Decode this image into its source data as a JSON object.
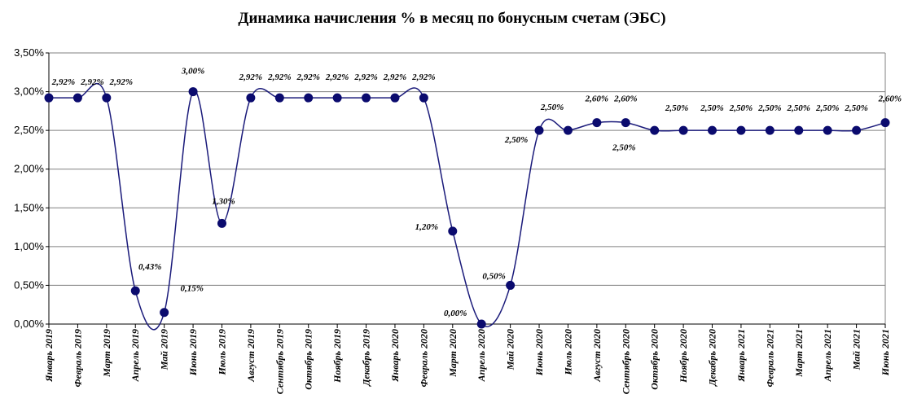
{
  "chart_data": {
    "type": "line",
    "title": "Динамика начисления % в месяц по бонусным счетам (ЭБС)",
    "xlabel": "",
    "ylabel": "",
    "ylim": [
      0,
      3.5
    ],
    "yticks": [
      0,
      0.5,
      1.0,
      1.5,
      2.0,
      2.5,
      3.0,
      3.5
    ],
    "ytick_labels": [
      "0,00%",
      "0,50%",
      "1,00%",
      "1,50%",
      "2,00%",
      "2,50%",
      "3,00%",
      "3,50%"
    ],
    "grid": true,
    "line_style": "smooth",
    "colors": {
      "line": "#1a1a7a",
      "marker": "#0b0b6e",
      "grid": "#808080",
      "axis": "#000000"
    },
    "categories": [
      "Январь 2019",
      "Февраль 2019",
      "Март 2019",
      "Апрель 2019",
      "Май 2019",
      "Июнь 2019",
      "Июль 2019",
      "Август 2019",
      "Сентябрь 2019",
      "Октябрь 2019",
      "Ноябрь 2019",
      "Декабрь 2019",
      "Январь 2020",
      "Февраль 2020",
      "Март 2020",
      "Апрель 2020",
      "Май 2020",
      "Июнь 2020",
      "Июль 2020",
      "Август 2020",
      "Сентябрь 2020",
      "Октябрь 2020",
      "Ноябрь 2020",
      "Декабрь 2020",
      "Январь 2021",
      "Февраль 2021",
      "Март 2021",
      "Апрель 2021",
      "Май 2021",
      "Июнь 2021"
    ],
    "values": [
      2.92,
      2.92,
      2.92,
      0.43,
      0.15,
      3.0,
      1.3,
      2.92,
      2.92,
      2.92,
      2.92,
      2.92,
      2.92,
      2.92,
      1.2,
      0.0,
      0.5,
      2.5,
      2.5,
      2.6,
      2.6,
      2.5,
      2.5,
      2.5,
      2.5,
      2.5,
      2.5,
      2.5,
      2.5,
      2.6
    ],
    "data_labels": [
      "2,92%",
      "2,92%",
      "2,92%",
      "0,43%",
      "0,15%",
      "3,00%",
      "1,30%",
      "2,92%",
      "2,92%",
      "2,92%",
      "2,92%",
      "2,92%",
      "2,92%",
      "2,92%",
      "1,20%",
      "0,00%",
      "0,50%",
      "2,50%",
      "2,50%",
      "2,60%",
      "2,60%",
      "2,50%",
      "2,50%",
      "2,50%",
      "2,50%",
      "2,50%",
      "2,50%",
      "2,50%",
      "2,50%",
      "2,60%"
    ]
  }
}
